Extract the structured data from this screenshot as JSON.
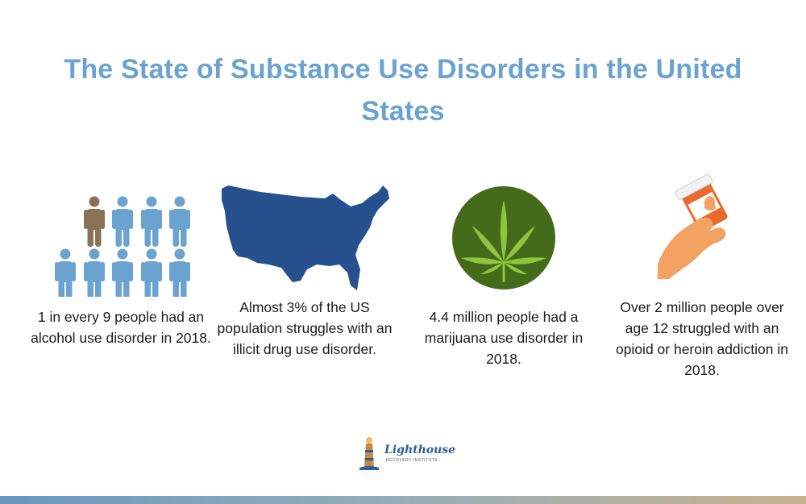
{
  "title": "The State of Substance Use Disorders in the United States",
  "stats": [
    {
      "caption": "1 in every 9 people had an alcohol use disorder in 2018.",
      "icon": "people-group-icon"
    },
    {
      "caption": "Almost 3% of the US population struggles with an illicit drug use disorder.",
      "icon": "us-map-icon"
    },
    {
      "caption": "4.4 million people had a marijuana use disorder in 2018.",
      "icon": "marijuana-leaf-icon"
    },
    {
      "caption": "Over 2 million people over age 12 struggled with an opioid or heroin addiction in 2018.",
      "icon": "hand-pill-bottle-icon"
    }
  ],
  "colors": {
    "title": "#6aa3d0",
    "people_blue": "#6aa3d0",
    "people_highlight": "#8a7256",
    "map": "#27508e",
    "leaf_circle": "#436b19",
    "leaf": "#8fc43f",
    "hand": "#f4a264",
    "bottle": "#ea6a2d",
    "bar_left": "#6a97bf",
    "bar_right": "#c8b18f"
  },
  "logo": {
    "name": "Lighthouse",
    "tagline": "RECOVERY INSTITUTE"
  }
}
